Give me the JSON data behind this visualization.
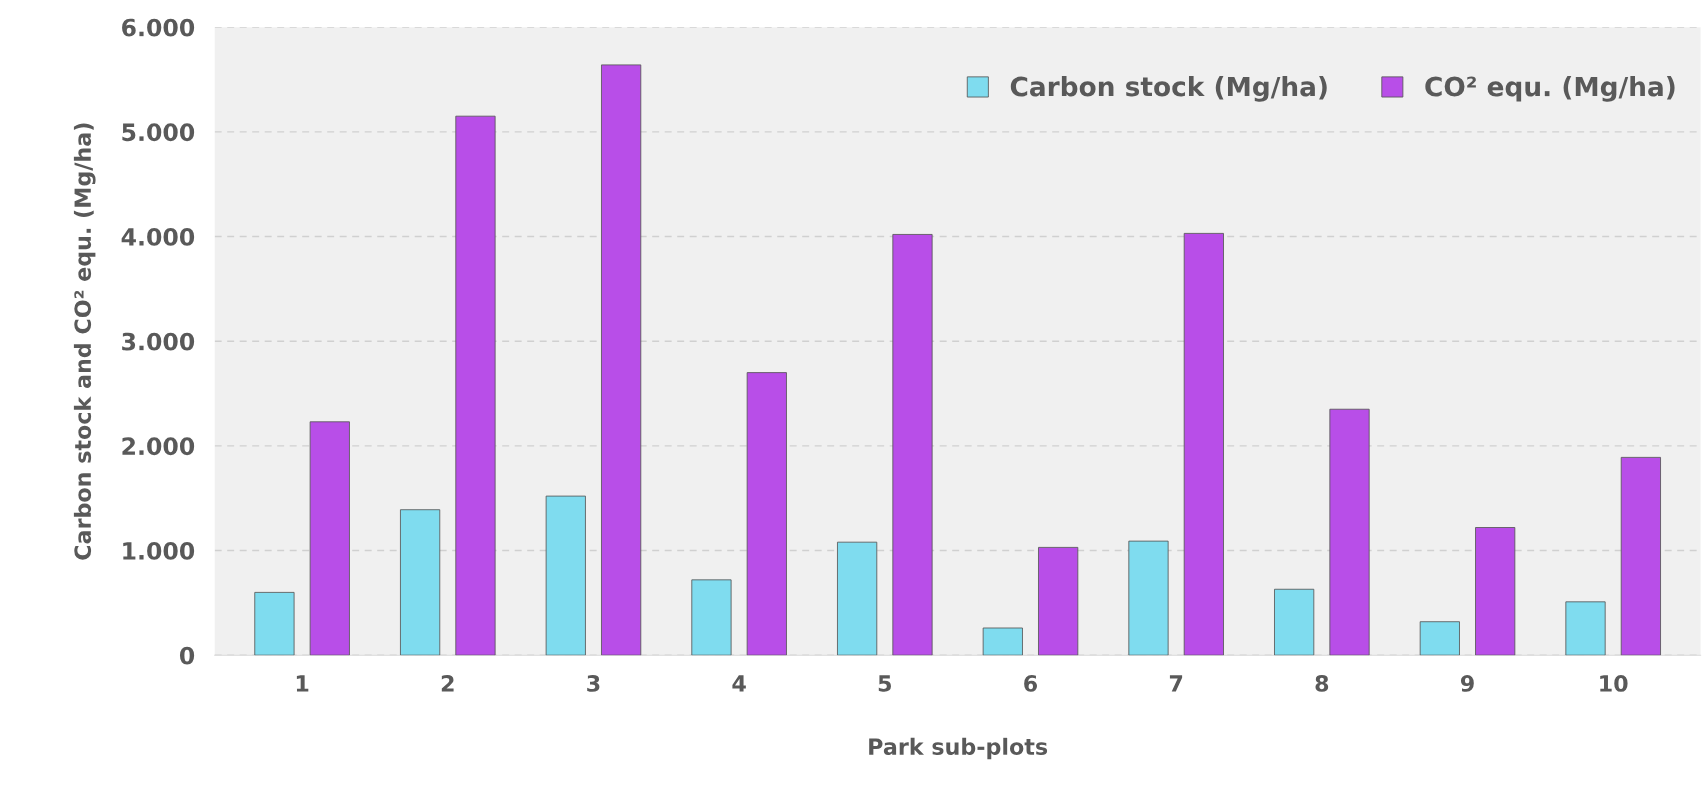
{
  "chart_data": {
    "type": "bar",
    "xlabel": "Park sub-plots",
    "ylabel": "Carbon stock and CO² equ. (Mg/ha)",
    "categories": [
      "1",
      "2",
      "3",
      "4",
      "5",
      "6",
      "7",
      "8",
      "9",
      "10"
    ],
    "series": [
      {
        "name": "Carbon stock (Mg/ha)",
        "color": "#7fdcef",
        "values": [
          600,
          1390,
          1520,
          720,
          1080,
          260,
          1090,
          630,
          320,
          510
        ]
      },
      {
        "name": "CO² equ. (Mg/ha)",
        "color": "#b84ee8",
        "values": [
          2230,
          5150,
          5640,
          2700,
          4020,
          1030,
          4030,
          2350,
          1220,
          1890
        ]
      }
    ],
    "ylim": [
      0,
      6000
    ],
    "yticks": [
      0,
      {
        "value": 1000,
        "label": "1.000"
      },
      {
        "value": 2000,
        "label": "2.000"
      },
      {
        "value": 3000,
        "label": "3.000"
      },
      {
        "value": 4000,
        "label": "4.000"
      },
      {
        "value": 5000,
        "label": "5.000"
      },
      {
        "value": 6000,
        "label": "6.000"
      }
    ],
    "grid": "y",
    "legend": "top right"
  }
}
